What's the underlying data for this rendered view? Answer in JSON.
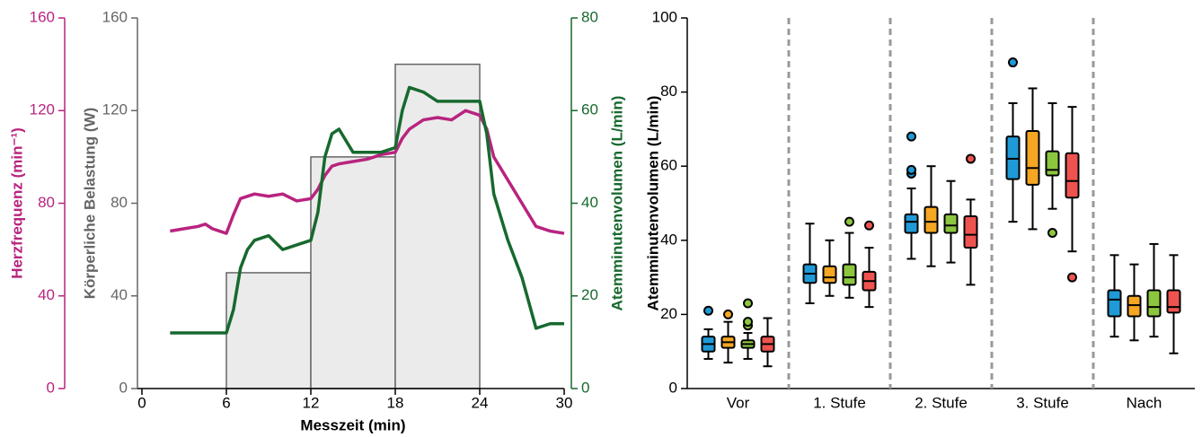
{
  "chart_data": [
    {
      "type": "line",
      "xlabel": "Messzeit (min)",
      "xlim": [
        0,
        30
      ],
      "xticks": [
        0,
        6,
        12,
        18,
        24,
        30
      ],
      "ylabel": "Herzfrequenz (min⁻¹)",
      "ylim": [
        0,
        160
      ],
      "yticks": [
        0,
        40,
        80,
        120,
        160
      ],
      "ycolor": "#b8247f",
      "load": {
        "label": "Körperliche Belastung (W)",
        "ylim": [
          0,
          160
        ],
        "yticks": [
          0,
          40,
          80,
          120,
          160
        ],
        "color": "#666666",
        "fill": "#ebebeb",
        "steps": [
          {
            "start": 6,
            "end": 12,
            "value": 50
          },
          {
            "start": 12,
            "end": 18,
            "value": 100
          },
          {
            "start": 18,
            "end": 24,
            "value": 140
          }
        ]
      },
      "y2label": "Atemminutenvolumen (L/min)",
      "y2lim": [
        0,
        80
      ],
      "y2ticks": [
        0,
        20,
        40,
        60,
        80
      ],
      "y2color": "#17692e",
      "series": [
        {
          "color": "#b8247f",
          "axis": "y",
          "x": [
            2,
            3,
            4,
            4.5,
            5,
            6,
            6.5,
            7,
            8,
            9,
            10,
            11,
            12,
            12.5,
            13,
            13.5,
            14,
            15,
            16,
            17,
            18,
            18.5,
            19,
            20,
            21,
            22,
            23,
            24,
            24.5,
            25,
            26,
            27,
            28,
            29,
            30
          ],
          "values": [
            68,
            69,
            70,
            71,
            69,
            67,
            75,
            82,
            84,
            83,
            84,
            81,
            82,
            86,
            92,
            96,
            97,
            98,
            99,
            101,
            102,
            108,
            112,
            116,
            117,
            116,
            120,
            118,
            112,
            100,
            90,
            80,
            70,
            68,
            67
          ]
        },
        {
          "color": "#17692e",
          "axis": "y2",
          "x": [
            2,
            5,
            6,
            6.5,
            7,
            7.5,
            8,
            9,
            10,
            11,
            12,
            12.5,
            13,
            13.5,
            14,
            15,
            16,
            17,
            18,
            18.5,
            19,
            20,
            21,
            22,
            23,
            24,
            24.5,
            25,
            26,
            27,
            28,
            29,
            30
          ],
          "values": [
            12,
            12,
            12,
            17,
            26,
            30,
            32,
            33,
            30,
            31,
            32,
            38,
            50,
            55,
            56,
            51,
            51,
            51,
            52,
            60,
            65,
            64,
            62,
            62,
            62,
            62,
            55,
            42,
            32,
            24,
            13,
            14,
            14
          ]
        }
      ]
    },
    {
      "type": "box",
      "ylabel": "Atemminutenvolumen (L/min)",
      "ylim": [
        0,
        100
      ],
      "yticks": [
        0,
        20,
        40,
        60,
        80,
        100
      ],
      "categories": [
        "Vor",
        "1. Stufe",
        "2. Stufe",
        "3. Stufe",
        "Nach"
      ],
      "series": [
        {
          "color": "#1f9ad6",
          "boxes": [
            {
              "low": 8,
              "q1": 10,
              "median": 12,
              "q3": 14,
              "high": 16,
              "outliers": [
                21
              ]
            },
            {
              "low": 23,
              "q1": 28.5,
              "median": 31,
              "q3": 33.5,
              "high": 44.5,
              "outliers": []
            },
            {
              "low": 35,
              "q1": 42,
              "median": 45,
              "q3": 47,
              "high": 54,
              "outliers": [
                58,
                59,
                68
              ]
            },
            {
              "low": 45,
              "q1": 56.5,
              "median": 62,
              "q3": 68,
              "high": 77,
              "outliers": [
                88
              ]
            },
            {
              "low": 14,
              "q1": 19.5,
              "median": 24,
              "q3": 26.5,
              "high": 36,
              "outliers": []
            }
          ]
        },
        {
          "color": "#f5a623",
          "boxes": [
            {
              "low": 7,
              "q1": 11,
              "median": 12.5,
              "q3": 14,
              "high": 18,
              "outliers": [
                20
              ]
            },
            {
              "low": 25,
              "q1": 28.5,
              "median": 30,
              "q3": 33,
              "high": 40,
              "outliers": []
            },
            {
              "low": 33,
              "q1": 42,
              "median": 45,
              "q3": 49,
              "high": 60,
              "outliers": []
            },
            {
              "low": 43,
              "q1": 55,
              "median": 59.5,
              "q3": 69.5,
              "high": 81,
              "outliers": []
            },
            {
              "low": 13,
              "q1": 19.5,
              "median": 22.5,
              "q3": 25,
              "high": 33.5,
              "outliers": []
            }
          ]
        },
        {
          "color": "#8cc63f",
          "boxes": [
            {
              "low": 8,
              "q1": 11,
              "median": 12,
              "q3": 13,
              "high": 15,
              "outliers": [
                17,
                18,
                23
              ]
            },
            {
              "low": 24.5,
              "q1": 28,
              "median": 30,
              "q3": 33.5,
              "high": 42,
              "outliers": [
                45
              ]
            },
            {
              "low": 34,
              "q1": 42,
              "median": 44,
              "q3": 47,
              "high": 56,
              "outliers": []
            },
            {
              "low": 48.5,
              "q1": 57.5,
              "median": 59,
              "q3": 64,
              "high": 77,
              "outliers": [
                42
              ]
            },
            {
              "low": 14,
              "q1": 19.5,
              "median": 22,
              "q3": 26.5,
              "high": 39,
              "outliers": []
            }
          ]
        },
        {
          "color": "#ef5350",
          "boxes": [
            {
              "low": 6,
              "q1": 10,
              "median": 12,
              "q3": 14,
              "high": 19,
              "outliers": []
            },
            {
              "low": 22,
              "q1": 26.5,
              "median": 29,
              "q3": 31.5,
              "high": 38,
              "outliers": [
                44
              ]
            },
            {
              "low": 28,
              "q1": 38,
              "median": 41.5,
              "q3": 46.5,
              "high": 51,
              "outliers": [
                62
              ]
            },
            {
              "low": 37,
              "q1": 51.5,
              "median": 56,
              "q3": 63.5,
              "high": 76,
              "outliers": [
                30
              ]
            },
            {
              "low": 9.5,
              "q1": 20.5,
              "median": 22,
              "q3": 26.5,
              "high": 36,
              "outliers": []
            }
          ]
        }
      ]
    }
  ]
}
